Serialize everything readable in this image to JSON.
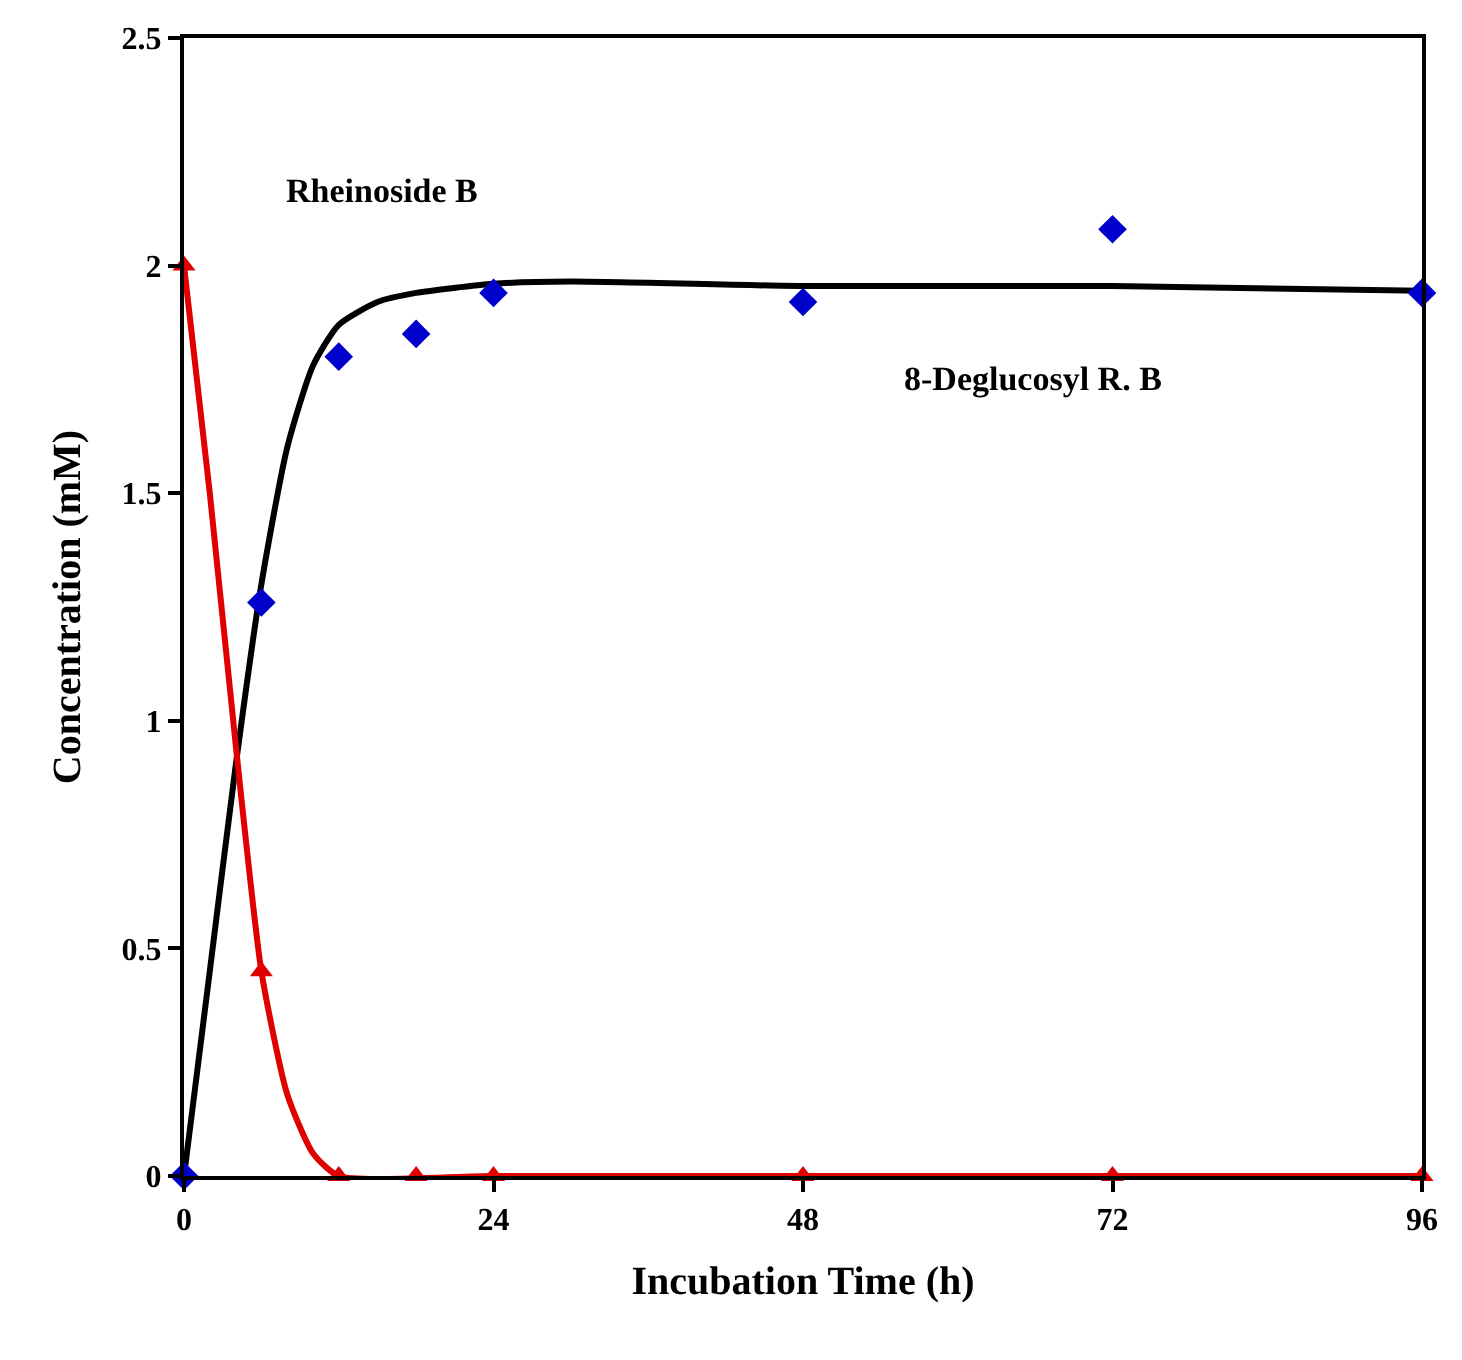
{
  "chart_data": {
    "type": "scatter",
    "xlabel": "Incubation Time (h)",
    "ylabel": "Concentration (mM)",
    "xlim": [
      0,
      96
    ],
    "xticks": [
      0,
      24,
      48,
      72,
      96
    ],
    "ylim": [
      0,
      2.5
    ],
    "yticks": [
      0,
      {
        "value": 0.5,
        "label": "0.5"
      },
      1,
      1.5,
      2,
      2.5
    ],
    "series": [
      {
        "type": "line",
        "color": "#000000",
        "marker": "none",
        "x": [
          0,
          2,
          4,
          6,
          8,
          10,
          12,
          15,
          18,
          24,
          30,
          48,
          72,
          96
        ],
        "values": [
          0,
          0.45,
          0.9,
          1.3,
          1.6,
          1.78,
          1.87,
          1.92,
          1.94,
          1.96,
          1.965,
          1.955,
          1.955,
          1.945
        ]
      },
      {
        "type": "line",
        "color": "#e00000",
        "marker": "none",
        "x": [
          0,
          2,
          4,
          6,
          8,
          10,
          12,
          24,
          48,
          72,
          96
        ],
        "values": [
          2.0,
          1.5,
          0.95,
          0.45,
          0.18,
          0.05,
          0,
          0,
          0,
          0,
          0
        ]
      },
      {
        "color": "#0000cc",
        "marker": "diamond",
        "x": [
          0,
          6,
          12,
          18,
          24,
          48,
          72,
          96
        ],
        "values": [
          0,
          1.26,
          1.8,
          1.85,
          1.94,
          1.92,
          2.08,
          1.94
        ]
      },
      {
        "color": "#e00000",
        "marker": "triangle",
        "x": [
          0,
          6,
          12,
          18,
          24,
          48,
          72,
          96
        ],
        "values": [
          2.0,
          0.45,
          0,
          0,
          0,
          0,
          0,
          0
        ]
      }
    ],
    "annotations": [
      "Rheinoside B",
      "8-Deglucosyl R. B"
    ]
  }
}
